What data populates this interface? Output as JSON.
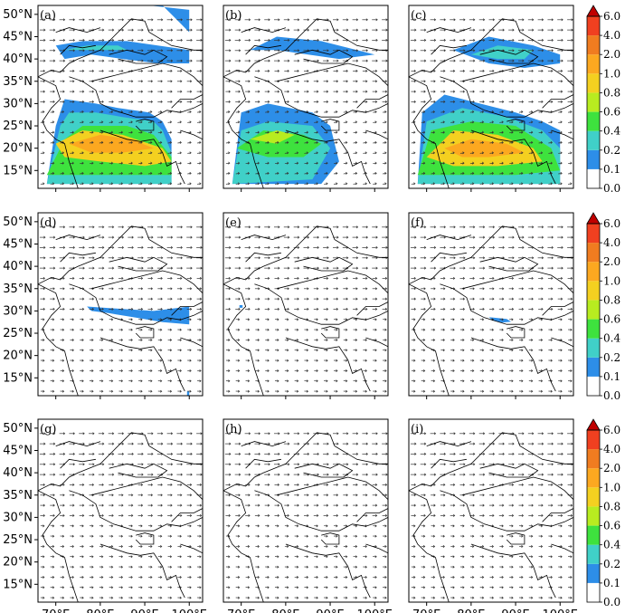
{
  "chart_data": {
    "type": "heatmap",
    "panels": [
      {
        "label": "(a)",
        "fields": [
          {
            "level": 0.1,
            "poly": [
              [
                68,
                12
              ],
              [
                70,
                25
              ],
              [
                72,
                31
              ],
              [
                79,
                30
              ],
              [
                84,
                29
              ],
              [
                91,
                28
              ],
              [
                94,
                26
              ],
              [
                96,
                22
              ],
              [
                96,
                12
              ]
            ]
          },
          {
            "level": 0.1,
            "poly": [
              [
                70,
                43
              ],
              [
                76,
                44
              ],
              [
                86,
                44
              ],
              [
                100,
                42
              ],
              [
                100,
                39
              ],
              [
                93,
                39
              ],
              [
                85,
                40
              ],
              [
                78,
                41
              ],
              [
                72,
                40
              ]
            ]
          },
          {
            "level": 0.1,
            "poly": [
              [
                91,
                52
              ],
              [
                94,
                52
              ],
              [
                97,
                49
              ],
              [
                100,
                46
              ],
              [
                100,
                51
              ]
            ]
          },
          {
            "level": 0.2,
            "poly": [
              [
                68,
                12
              ],
              [
                71,
                25
              ],
              [
                73,
                28
              ],
              [
                79,
                28
              ],
              [
                85,
                27
              ],
              [
                92,
                26
              ],
              [
                94,
                24
              ],
              [
                96,
                19
              ],
              [
                96,
                12
              ]
            ]
          },
          {
            "level": 0.2,
            "poly": [
              [
                72,
                42
              ],
              [
                77,
                43
              ],
              [
                84,
                43
              ],
              [
                86,
                42
              ]
            ]
          },
          {
            "level": 0.4,
            "poly": [
              [
                68,
                14
              ],
              [
                72,
                22
              ],
              [
                76,
                25
              ],
              [
                86,
                25
              ],
              [
                92,
                23
              ],
              [
                96,
                18
              ],
              [
                96,
                14
              ],
              [
                85,
                14
              ],
              [
                75,
                14
              ]
            ]
          },
          {
            "level": 0.8,
            "poly": [
              [
                70,
                21
              ],
              [
                76,
                24
              ],
              [
                85,
                23
              ],
              [
                94,
                20
              ],
              [
                96,
                17
              ],
              [
                90,
                16
              ],
              [
                80,
                17
              ],
              [
                72,
                18
              ]
            ]
          },
          {
            "level": 1.0,
            "poly": [
              [
                73,
                21
              ],
              [
                80,
                23
              ],
              [
                87,
                22
              ],
              [
                92,
                20
              ],
              [
                85,
                19
              ],
              [
                78,
                19
              ]
            ]
          }
        ]
      },
      {
        "label": "(b)",
        "fields": [
          {
            "level": 0.1,
            "poly": [
              [
                68,
                12
              ],
              [
                70,
                28
              ],
              [
                76,
                30
              ],
              [
                86,
                28
              ],
              [
                90,
                25
              ],
              [
                92,
                17
              ],
              [
                88,
                12
              ]
            ]
          },
          {
            "level": 0.1,
            "poly": [
              [
                72,
                42
              ],
              [
                78,
                45
              ],
              [
                88,
                44
              ],
              [
                96,
                42
              ],
              [
                100,
                41
              ],
              [
                92,
                40
              ],
              [
                85,
                41
              ],
              [
                78,
                42
              ]
            ]
          },
          {
            "level": 0.2,
            "poly": [
              [
                68,
                12
              ],
              [
                70,
                24
              ],
              [
                76,
                26
              ],
              [
                86,
                25
              ],
              [
                90,
                20
              ],
              [
                86,
                13
              ]
            ]
          },
          {
            "level": 0.4,
            "poly": [
              [
                69,
                20
              ],
              [
                75,
                24
              ],
              [
                84,
                23
              ],
              [
                88,
                21
              ],
              [
                84,
                18
              ],
              [
                76,
                18
              ]
            ]
          },
          {
            "level": 0.6,
            "poly": [
              [
                72,
                22
              ],
              [
                78,
                24
              ],
              [
                82,
                23
              ],
              [
                78,
                21
              ]
            ]
          }
        ]
      },
      {
        "label": "(c)",
        "fields": [
          {
            "level": 0.1,
            "poly": [
              [
                68,
                12
              ],
              [
                69,
                28
              ],
              [
                74,
                32
              ],
              [
                82,
                30
              ],
              [
                90,
                28
              ],
              [
                96,
                26
              ],
              [
                100,
                24
              ],
              [
                100,
                12
              ]
            ]
          },
          {
            "level": 0.1,
            "poly": [
              [
                76,
                42
              ],
              [
                84,
                45
              ],
              [
                94,
                43
              ],
              [
                100,
                41
              ],
              [
                100,
                39
              ],
              [
                92,
                38
              ],
              [
                84,
                39
              ]
            ]
          },
          {
            "level": 0.2,
            "poly": [
              [
                68,
                12
              ],
              [
                70,
                26
              ],
              [
                78,
                29
              ],
              [
                88,
                27
              ],
              [
                96,
                24
              ],
              [
                100,
                20
              ],
              [
                100,
                12
              ]
            ]
          },
          {
            "level": 0.2,
            "poly": [
              [
                80,
                41
              ],
              [
                86,
                43
              ],
              [
                94,
                42
              ],
              [
                92,
                40
              ],
              [
                86,
                40
              ]
            ]
          },
          {
            "level": 0.4,
            "poly": [
              [
                68,
                14
              ],
              [
                71,
                24
              ],
              [
                80,
                26
              ],
              [
                90,
                25
              ],
              [
                98,
                20
              ],
              [
                100,
                15
              ],
              [
                90,
                14
              ],
              [
                78,
                14
              ]
            ]
          },
          {
            "level": 0.8,
            "poly": [
              [
                70,
                18
              ],
              [
                76,
                24
              ],
              [
                86,
                23
              ],
              [
                94,
                20
              ],
              [
                96,
                17
              ],
              [
                86,
                16
              ],
              [
                76,
                16
              ]
            ]
          },
          {
            "level": 1.0,
            "poly": [
              [
                74,
                20
              ],
              [
                80,
                22
              ],
              [
                88,
                21
              ],
              [
                92,
                19
              ],
              [
                84,
                18
              ],
              [
                78,
                18
              ]
            ]
          }
        ]
      },
      {
        "label": "(d)",
        "fields": [
          {
            "level": 0.1,
            "poly": [
              [
                77,
                31
              ],
              [
                84,
                30.5
              ],
              [
                92,
                30
              ],
              [
                100,
                31
              ],
              [
                100,
                27
              ],
              [
                94,
                27.5
              ],
              [
                88,
                28.5
              ],
              [
                82,
                29.5
              ],
              [
                78,
                30
              ]
            ]
          },
          {
            "level": 0.1,
            "poly": [
              [
                99.5,
                12
              ],
              [
                100,
                12
              ],
              [
                100,
                11
              ],
              [
                99.5,
                11
              ]
            ]
          }
        ]
      },
      {
        "label": "(e)",
        "fields": [
          {
            "level": 0.1,
            "poly": [
              [
                69.6,
                31.3
              ],
              [
                70.3,
                31.3
              ],
              [
                70.3,
                30.7
              ],
              [
                69.6,
                30.7
              ]
            ]
          }
        ]
      },
      {
        "label": "(f)",
        "fields": [
          {
            "level": 0.1,
            "poly": [
              [
                84,
                28.6
              ],
              [
                86,
                28.4
              ],
              [
                88,
                28.2
              ],
              [
                89,
                27.6
              ],
              [
                87,
                27.4
              ],
              [
                85,
                27.8
              ]
            ]
          }
        ]
      },
      {
        "label": "(g)",
        "fields": []
      },
      {
        "label": "(h)",
        "fields": []
      },
      {
        "label": "(i)",
        "fields": []
      }
    ],
    "x_ticks": [
      "70°E",
      "80°E",
      "90°E",
      "100°E"
    ],
    "x_tick_values": [
      70,
      80,
      90,
      100
    ],
    "y_ticks": [
      "15°N",
      "20°N",
      "25°N",
      "30°N",
      "35°N",
      "40°N",
      "45°N",
      "50°N"
    ],
    "y_tick_values": [
      15,
      20,
      25,
      30,
      35,
      40,
      45,
      50
    ],
    "xlim": [
      66,
      103
    ],
    "ylim": [
      11,
      52
    ],
    "colorbar": {
      "labels": [
        "0.0",
        "0.1",
        "0.2",
        "0.4",
        "0.6",
        "0.8",
        "1.0",
        "2.0",
        "4.0",
        "6.0"
      ],
      "levels": [
        0.0,
        0.1,
        0.2,
        0.4,
        0.6,
        0.8,
        1.0,
        2.0,
        4.0,
        6.0
      ],
      "colors": [
        "#ffffff",
        "#2d8ee8",
        "#40d0c8",
        "#3ee23e",
        "#b8ec20",
        "#f4d020",
        "#fca820",
        "#f07c20",
        "#f04020",
        "#c00000"
      ]
    },
    "vectors": true,
    "outline_color": "#000000"
  }
}
